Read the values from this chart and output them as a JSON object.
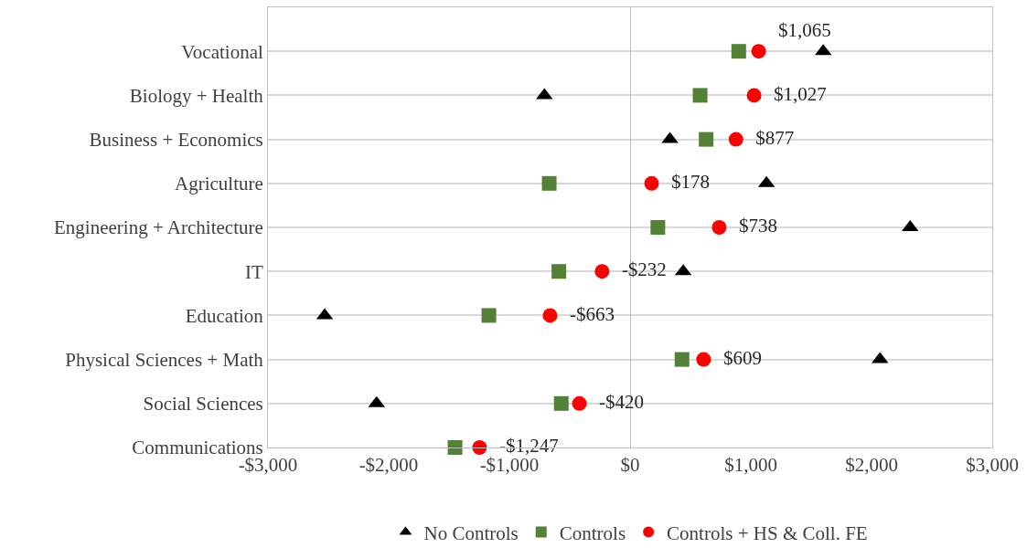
{
  "chart_data": {
    "type": "scatter",
    "categories": [
      "Vocational",
      "Biology + Health",
      "Business + Economics",
      "Agriculture",
      "Engineering + Architecture",
      "IT",
      "Education",
      "Physical Sciences + Math",
      "Social Sciences",
      "Communications"
    ],
    "orientation": "horizontal",
    "series": [
      {
        "name": "No Controls",
        "color": "#000000",
        "marker": "triangle",
        "values": [
          1600,
          -710,
          330,
          1130,
          2320,
          440,
          -2530,
          2070,
          -2100,
          null
        ]
      },
      {
        "name": "Controls",
        "color": "#538135",
        "marker": "square",
        "values": [
          900,
          580,
          630,
          -670,
          230,
          -590,
          -1170,
          430,
          -570,
          -1450
        ]
      },
      {
        "name": "Controls + HS & Coll. FE",
        "color": "#ff0000",
        "marker": "circle",
        "values": [
          1065,
          1027,
          877,
          178,
          738,
          -232,
          -663,
          609,
          -420,
          -1247
        ],
        "value_labels": [
          "$1,065",
          "$1,027",
          "$877",
          "$178",
          "$738",
          "-$232",
          "-$663",
          "$609",
          "-$420",
          "-$1,247"
        ]
      }
    ],
    "xlim": [
      -3000,
      3000
    ],
    "xticks": [
      {
        "value": -3000,
        "label": "-$3,000"
      },
      {
        "value": -2000,
        "label": "-$2,000"
      },
      {
        "value": -1000,
        "label": "-$1,000"
      },
      {
        "value": 0,
        "label": "$0"
      },
      {
        "value": 1000,
        "label": "$1,000"
      },
      {
        "value": 2000,
        "label": "$2,000"
      },
      {
        "value": 3000,
        "label": "$3,000"
      }
    ],
    "grid": "y",
    "legend": "bottom"
  }
}
